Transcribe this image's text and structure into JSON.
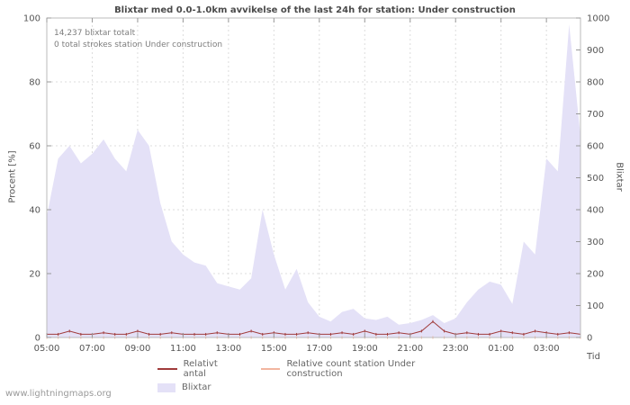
{
  "page": {
    "watermark": "www.lightningmaps.org"
  },
  "chart_data": {
    "type": "area",
    "title": "Blixtar med 0.0-1.0km avvikelse of the last 24h for station: Under construction",
    "xlabel": "Tid",
    "ylabel_left": "Procent  [%]",
    "ylabel_right": "Blixtar",
    "ylim_left": [
      0,
      100
    ],
    "ylim_right": [
      0,
      1000
    ],
    "left_ticks": [
      0,
      20,
      40,
      60,
      80,
      100
    ],
    "right_ticks": [
      0,
      100,
      200,
      300,
      400,
      500,
      600,
      700,
      800,
      900,
      1000
    ],
    "x_ticks": [
      "05:00",
      "07:00",
      "09:00",
      "11:00",
      "13:00",
      "15:00",
      "17:00",
      "19:00",
      "21:00",
      "23:00",
      "01:00",
      "03:00"
    ],
    "x_tick_step": 4,
    "grid": true,
    "legend_position": "bottom",
    "annotations": [
      "14,237 blixtar totalt",
      "0 total strokes station Under construction"
    ],
    "x": [
      "05:00",
      "05:30",
      "06:00",
      "06:30",
      "07:00",
      "07:30",
      "08:00",
      "08:30",
      "09:00",
      "09:30",
      "10:00",
      "10:30",
      "11:00",
      "11:30",
      "12:00",
      "12:30",
      "13:00",
      "13:30",
      "14:00",
      "14:30",
      "15:00",
      "15:30",
      "16:00",
      "16:30",
      "17:00",
      "17:30",
      "18:00",
      "18:30",
      "19:00",
      "19:30",
      "20:00",
      "20:30",
      "21:00",
      "21:30",
      "22:00",
      "22:30",
      "23:00",
      "23:30",
      "00:00",
      "00:30",
      "01:00",
      "01:30",
      "02:00",
      "02:30",
      "03:00",
      "03:30",
      "04:00",
      "04:30"
    ],
    "series": [
      {
        "name": "Blixtar",
        "type": "area",
        "axis": "right",
        "color": "#e4e1f7",
        "values": [
          380,
          560,
          600,
          545,
          575,
          620,
          560,
          520,
          650,
          600,
          420,
          300,
          260,
          235,
          225,
          170,
          160,
          150,
          185,
          400,
          260,
          150,
          215,
          110,
          65,
          50,
          80,
          90,
          60,
          55,
          65,
          40,
          45,
          55,
          70,
          45,
          60,
          110,
          150,
          175,
          165,
          105,
          300,
          260,
          560,
          520,
          980,
          630
        ]
      },
      {
        "name": "Relativt antal",
        "type": "line",
        "axis": "left",
        "color": "#a03c3c",
        "values": [
          1,
          1,
          2,
          1,
          1,
          1.5,
          1,
          1,
          2,
          1,
          1,
          1.5,
          1,
          1,
          1,
          1.5,
          1,
          1,
          2,
          1,
          1.5,
          1,
          1,
          1.5,
          1,
          1,
          1.5,
          1,
          2,
          1,
          1,
          1.5,
          1,
          2,
          5,
          2,
          1,
          1.5,
          1,
          1,
          2,
          1.5,
          1,
          2,
          1.5,
          1,
          1.5,
          1
        ]
      },
      {
        "name": "Relative count station Under construction",
        "type": "line",
        "axis": "left",
        "color": "#f2b6a0",
        "values": [
          0,
          0,
          0,
          0,
          0,
          0,
          0,
          0,
          0,
          0,
          0,
          0,
          0,
          0,
          0,
          0,
          0,
          0,
          0,
          0,
          0,
          0,
          0,
          0,
          0,
          0,
          0,
          0,
          0,
          0,
          0,
          0,
          0,
          0,
          0,
          0,
          0,
          0,
          0,
          0,
          0,
          0,
          0,
          0,
          0,
          0,
          0,
          0
        ]
      }
    ]
  }
}
